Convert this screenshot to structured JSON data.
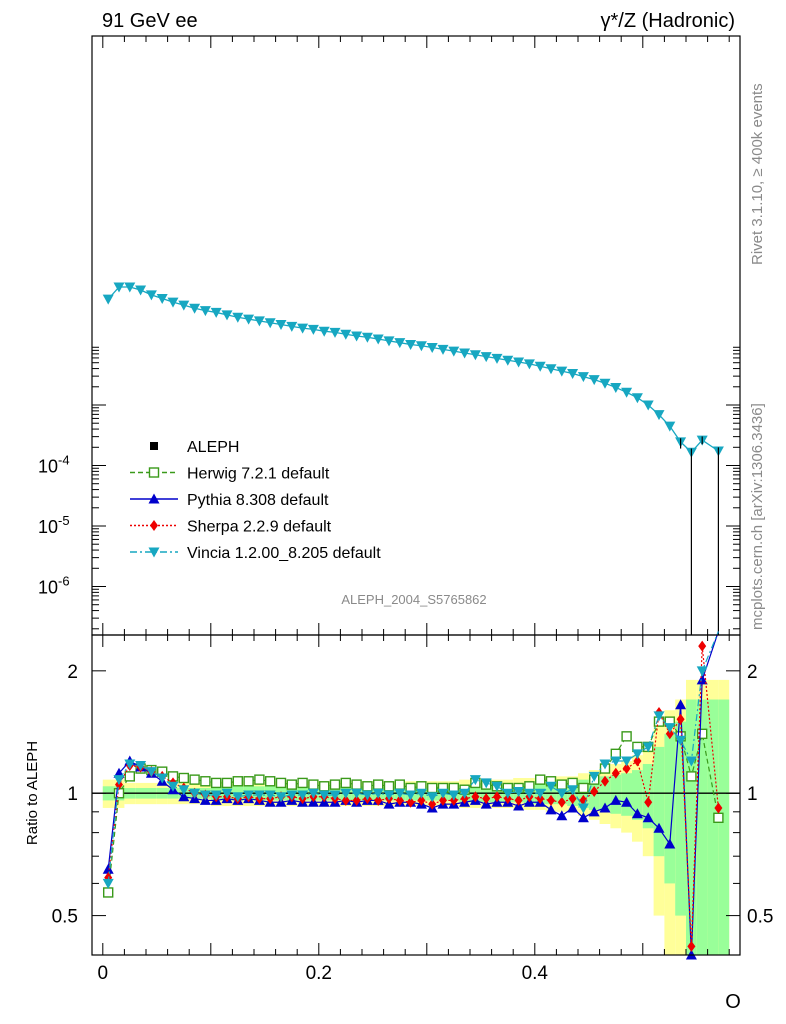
{
  "header": {
    "energy": "91 GeV ee",
    "process": "γ*/Z (Hadronic)",
    "rivet_note": "Rivet 3.1.10, ≥ 400k events",
    "source_note": "mcplots.cern.ch [arXiv:1306.3436]",
    "analysis_id": "ALEPH_2004_S5765862"
  },
  "colors": {
    "data": "#000000",
    "herwig": "#3a9a1a",
    "pythia": "#0000cc",
    "sherpa": "#ee0000",
    "vincia": "#17a7c1",
    "band_outer": "#ffff99",
    "band_inner": "#99ff99"
  },
  "legend": [
    {
      "key": "data",
      "label": "ALEPH",
      "style": "square-filled"
    },
    {
      "key": "herwig",
      "label": "Herwig 7.2.1 default",
      "style": "square-open-dashed"
    },
    {
      "key": "pythia",
      "label": "Pythia 8.308 default",
      "style": "triangle-up-solid"
    },
    {
      "key": "sherpa",
      "label": "Sherpa 2.2.9 default",
      "style": "diamond-dotted"
    },
    {
      "key": "vincia",
      "label": "Vincia 1.2.00_8.205 default",
      "style": "triangle-down-dashdot"
    }
  ],
  "chart_data": {
    "type": "line",
    "xlabel": "O",
    "ylabel_ratio": "Ratio to ALEPH",
    "xlim": [
      -0.01,
      0.59
    ],
    "x_ticks": [
      "0",
      "0.2",
      "0.4"
    ],
    "main_y_ticks": [
      "10^-6",
      "10^-5",
      "10^-4"
    ],
    "main_ylog": true,
    "ratio_ylog": true,
    "ratio_ylim": [
      0.4,
      2.45
    ],
    "ratio_y_ticks": [
      "0.5",
      "1",
      "2"
    ],
    "main_series_vincia": {
      "x": [
        0.005,
        0.015,
        0.025,
        0.035,
        0.045,
        0.055,
        0.065,
        0.075,
        0.085,
        0.095,
        0.105,
        0.115,
        0.125,
        0.135,
        0.145,
        0.155,
        0.165,
        0.175,
        0.185,
        0.195,
        0.205,
        0.215,
        0.225,
        0.235,
        0.245,
        0.255,
        0.265,
        0.275,
        0.285,
        0.295,
        0.305,
        0.315,
        0.325,
        0.335,
        0.345,
        0.355,
        0.365,
        0.375,
        0.385,
        0.395,
        0.405,
        0.415,
        0.425,
        0.435,
        0.445,
        0.455,
        0.465,
        0.475,
        0.485,
        0.495,
        0.505,
        0.515,
        0.525,
        0.535,
        0.545,
        0.555,
        0.57
      ],
      "log10_y": [
        -1.25,
        -1.05,
        -1.05,
        -1.1,
        -1.18,
        -1.24,
        -1.3,
        -1.35,
        -1.4,
        -1.44,
        -1.47,
        -1.51,
        -1.55,
        -1.58,
        -1.61,
        -1.64,
        -1.67,
        -1.7,
        -1.73,
        -1.75,
        -1.78,
        -1.8,
        -1.83,
        -1.86,
        -1.88,
        -1.91,
        -1.94,
        -1.97,
        -2.0,
        -2.02,
        -2.05,
        -2.08,
        -2.11,
        -2.14,
        -2.17,
        -2.2,
        -2.23,
        -2.26,
        -2.29,
        -2.32,
        -2.36,
        -2.4,
        -2.44,
        -2.48,
        -2.53,
        -2.58,
        -2.64,
        -2.71,
        -2.79,
        -2.88,
        -3.0,
        -3.16,
        -3.35,
        -3.61,
        -3.78,
        -3.58,
        -3.76
      ]
    },
    "ratio_series": [
      {
        "name": "Herwig 7.2.1 default",
        "key": "herwig",
        "x": [
          0.005,
          0.015,
          0.025,
          0.035,
          0.045,
          0.055,
          0.065,
          0.075,
          0.085,
          0.095,
          0.105,
          0.115,
          0.125,
          0.135,
          0.145,
          0.155,
          0.165,
          0.175,
          0.185,
          0.195,
          0.205,
          0.215,
          0.225,
          0.235,
          0.245,
          0.255,
          0.265,
          0.275,
          0.285,
          0.295,
          0.305,
          0.315,
          0.325,
          0.335,
          0.345,
          0.355,
          0.365,
          0.375,
          0.385,
          0.395,
          0.405,
          0.415,
          0.425,
          0.435,
          0.445,
          0.455,
          0.465,
          0.475,
          0.485,
          0.495,
          0.505,
          0.515,
          0.525,
          0.535,
          0.545,
          0.555,
          0.57
        ],
        "y": [
          0.57,
          1.0,
          1.1,
          1.15,
          1.14,
          1.13,
          1.1,
          1.09,
          1.08,
          1.07,
          1.06,
          1.06,
          1.07,
          1.07,
          1.08,
          1.07,
          1.06,
          1.05,
          1.06,
          1.05,
          1.04,
          1.05,
          1.06,
          1.05,
          1.04,
          1.05,
          1.04,
          1.05,
          1.03,
          1.04,
          1.03,
          1.03,
          1.03,
          1.02,
          1.06,
          1.05,
          1.04,
          1.03,
          1.03,
          1.04,
          1.08,
          1.07,
          1.05,
          1.06,
          1.03,
          1.08,
          1.15,
          1.25,
          1.38,
          1.3,
          1.3,
          1.5,
          1.5,
          1.38,
          1.1,
          1.4,
          0.87
        ]
      },
      {
        "name": "Pythia 8.308 default",
        "key": "pythia",
        "x": [
          0.005,
          0.015,
          0.025,
          0.035,
          0.045,
          0.055,
          0.065,
          0.075,
          0.085,
          0.095,
          0.105,
          0.115,
          0.125,
          0.135,
          0.145,
          0.155,
          0.165,
          0.175,
          0.185,
          0.195,
          0.205,
          0.215,
          0.225,
          0.235,
          0.245,
          0.255,
          0.265,
          0.275,
          0.285,
          0.295,
          0.305,
          0.315,
          0.325,
          0.335,
          0.345,
          0.355,
          0.365,
          0.375,
          0.385,
          0.395,
          0.405,
          0.415,
          0.425,
          0.435,
          0.445,
          0.455,
          0.465,
          0.475,
          0.485,
          0.495,
          0.505,
          0.515,
          0.525,
          0.535,
          0.545,
          0.555,
          0.57
        ],
        "y": [
          0.65,
          1.12,
          1.2,
          1.16,
          1.12,
          1.07,
          1.02,
          0.98,
          0.97,
          0.96,
          0.96,
          0.97,
          0.96,
          0.97,
          0.96,
          0.95,
          0.95,
          0.96,
          0.95,
          0.95,
          0.95,
          0.95,
          0.96,
          0.95,
          0.96,
          0.96,
          0.94,
          0.95,
          0.95,
          0.94,
          0.92,
          0.94,
          0.94,
          0.95,
          0.96,
          0.94,
          0.95,
          0.95,
          0.93,
          0.95,
          0.95,
          0.91,
          0.88,
          0.92,
          0.87,
          0.9,
          0.92,
          0.96,
          0.95,
          0.89,
          0.87,
          0.82,
          0.75,
          1.65,
          0.4,
          1.9,
          2.5
        ]
      },
      {
        "name": "Sherpa 2.2.9 default",
        "key": "sherpa",
        "x": [
          0.005,
          0.015,
          0.025,
          0.035,
          0.045,
          0.055,
          0.065,
          0.075,
          0.085,
          0.095,
          0.105,
          0.115,
          0.125,
          0.135,
          0.145,
          0.155,
          0.165,
          0.175,
          0.185,
          0.195,
          0.205,
          0.215,
          0.225,
          0.235,
          0.245,
          0.255,
          0.265,
          0.275,
          0.285,
          0.295,
          0.305,
          0.315,
          0.325,
          0.335,
          0.345,
          0.355,
          0.365,
          0.375,
          0.385,
          0.395,
          0.405,
          0.415,
          0.425,
          0.435,
          0.445,
          0.455,
          0.465,
          0.475,
          0.485,
          0.495,
          0.505,
          0.515,
          0.525,
          0.535,
          0.545,
          0.555,
          0.57
        ],
        "y": [
          0.62,
          1.05,
          1.17,
          1.16,
          1.13,
          1.1,
          1.06,
          1.03,
          1.0,
          0.99,
          0.98,
          0.98,
          0.97,
          0.98,
          0.97,
          0.97,
          0.98,
          0.98,
          0.97,
          0.98,
          0.98,
          0.97,
          0.96,
          0.96,
          0.97,
          0.96,
          0.97,
          0.96,
          0.95,
          0.96,
          0.94,
          0.96,
          0.96,
          0.97,
          0.98,
          0.97,
          0.98,
          0.97,
          0.96,
          0.98,
          0.97,
          0.96,
          0.95,
          0.97,
          0.96,
          1.01,
          1.07,
          1.12,
          1.15,
          1.2,
          0.95,
          1.58,
          1.4,
          1.52,
          0.42,
          2.3,
          0.92
        ]
      },
      {
        "name": "Vincia 1.2.00_8.205 default",
        "key": "vincia",
        "x": [
          0.005,
          0.015,
          0.025,
          0.035,
          0.045,
          0.055,
          0.065,
          0.075,
          0.085,
          0.095,
          0.105,
          0.115,
          0.125,
          0.135,
          0.145,
          0.155,
          0.165,
          0.175,
          0.185,
          0.195,
          0.205,
          0.215,
          0.225,
          0.235,
          0.245,
          0.255,
          0.265,
          0.275,
          0.285,
          0.295,
          0.305,
          0.315,
          0.325,
          0.335,
          0.345,
          0.355,
          0.365,
          0.375,
          0.385,
          0.395,
          0.405,
          0.415,
          0.425,
          0.435,
          0.445,
          0.455,
          0.465,
          0.475,
          0.485,
          0.495,
          0.505,
          0.515,
          0.525,
          0.535,
          0.545,
          0.555,
          0.57
        ],
        "y": [
          0.6,
          1.08,
          1.18,
          1.17,
          1.13,
          1.09,
          1.04,
          1.02,
          1.0,
          0.99,
          0.99,
          1.0,
          0.98,
          0.99,
          0.99,
          0.99,
          0.98,
          0.99,
          0.99,
          1.0,
          0.99,
          0.99,
          1.0,
          1.0,
          0.99,
          1.0,
          0.99,
          1.0,
          0.99,
          1.0,
          0.98,
          1.0,
          0.99,
          1.0,
          1.08,
          1.06,
          1.04,
          1.0,
          1.01,
          1.0,
          1.0,
          1.04,
          1.0,
          1.02,
          0.92,
          1.1,
          1.18,
          1.2,
          1.2,
          1.25,
          1.3,
          1.55,
          1.45,
          1.35,
          1.2,
          2.0,
          2.5
        ]
      }
    ],
    "band_x_edges": [
      0.0,
      0.01,
      0.02,
      0.03,
      0.04,
      0.05,
      0.06,
      0.07,
      0.08,
      0.09,
      0.1,
      0.11,
      0.12,
      0.13,
      0.14,
      0.15,
      0.16,
      0.17,
      0.18,
      0.19,
      0.2,
      0.21,
      0.22,
      0.23,
      0.24,
      0.25,
      0.26,
      0.27,
      0.28,
      0.29,
      0.3,
      0.31,
      0.32,
      0.33,
      0.34,
      0.35,
      0.36,
      0.37,
      0.38,
      0.39,
      0.4,
      0.41,
      0.42,
      0.43,
      0.44,
      0.45,
      0.46,
      0.47,
      0.48,
      0.49,
      0.5,
      0.51,
      0.52,
      0.53,
      0.54,
      0.55,
      0.56,
      0.57,
      0.58
    ],
    "band_outer_half": [
      0.08,
      0.08,
      0.06,
      0.06,
      0.06,
      0.06,
      0.06,
      0.06,
      0.06,
      0.06,
      0.07,
      0.07,
      0.07,
      0.07,
      0.07,
      0.07,
      0.07,
      0.07,
      0.07,
      0.07,
      0.07,
      0.07,
      0.07,
      0.07,
      0.07,
      0.07,
      0.07,
      0.07,
      0.07,
      0.07,
      0.07,
      0.07,
      0.07,
      0.08,
      0.08,
      0.08,
      0.08,
      0.08,
      0.09,
      0.09,
      0.09,
      0.1,
      0.1,
      0.1,
      0.12,
      0.14,
      0.16,
      0.18,
      0.2,
      0.24,
      0.3,
      0.5,
      0.6,
      0.7,
      0.9,
      0.9,
      0.9,
      0.9
    ],
    "band_inner_half": [
      0.04,
      0.04,
      0.03,
      0.03,
      0.03,
      0.03,
      0.03,
      0.03,
      0.03,
      0.03,
      0.04,
      0.04,
      0.04,
      0.04,
      0.04,
      0.04,
      0.04,
      0.04,
      0.04,
      0.04,
      0.04,
      0.04,
      0.04,
      0.04,
      0.04,
      0.04,
      0.04,
      0.04,
      0.04,
      0.04,
      0.04,
      0.04,
      0.04,
      0.05,
      0.05,
      0.05,
      0.05,
      0.05,
      0.05,
      0.06,
      0.06,
      0.06,
      0.06,
      0.07,
      0.08,
      0.09,
      0.1,
      0.11,
      0.12,
      0.14,
      0.18,
      0.3,
      0.4,
      0.5,
      0.7,
      0.7,
      0.7,
      0.7
    ]
  }
}
